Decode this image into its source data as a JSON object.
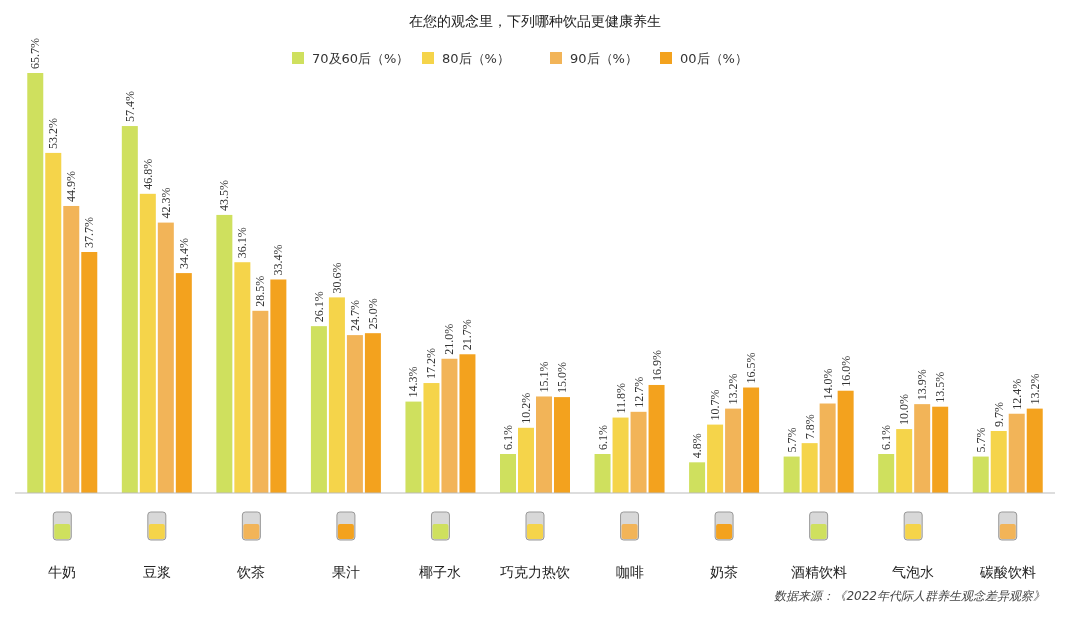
{
  "chart_data": {
    "type": "bar",
    "title": "在您的观念里，下列哪种饮品更健康养生",
    "categories": [
      "牛奶",
      "豆浆",
      "饮茶",
      "果汁",
      "椰子水",
      "巧克力热饮",
      "咖啡",
      "奶茶",
      "酒精饮料",
      "气泡水",
      "碳酸饮料"
    ],
    "series": [
      {
        "name": "70及60后（%）",
        "color": "#cfe05e",
        "values": [
          65.7,
          57.4,
          43.5,
          26.1,
          14.3,
          6.1,
          6.1,
          4.8,
          5.7,
          6.1,
          5.7
        ],
        "value_labels": [
          "65.7%",
          "57.4%",
          "43.5%",
          "26.1%",
          "14.3%",
          "6.1%",
          "6.1%",
          "4.8%",
          "5.7%",
          "6.1%",
          "5.7%"
        ]
      },
      {
        "name": "80后（%）",
        "color": "#f5d44a",
        "values": [
          53.2,
          46.8,
          36.1,
          30.6,
          17.2,
          10.2,
          11.8,
          10.7,
          7.8,
          10.0,
          9.7
        ],
        "value_labels": [
          "53.2%",
          "46.8%",
          "36.1%",
          "30.6%",
          "17.2%",
          "10.2%",
          "11.8%",
          "10.7%",
          "7.8%",
          "10.0%",
          "9.7%"
        ]
      },
      {
        "name": "90后（%）",
        "color": "#f2b458",
        "values": [
          44.9,
          42.3,
          28.5,
          24.7,
          21.0,
          15.1,
          12.7,
          13.2,
          14.0,
          13.9,
          12.4
        ],
        "value_labels": [
          "44.9%",
          "42.3%",
          "28.5%",
          "24.7%",
          "21.0%",
          "15.1%",
          "12.7%",
          "13.2%",
          "14.0%",
          "13.9%",
          "12.4%"
        ]
      },
      {
        "name": "00后（%）",
        "color": "#f3a21e",
        "values": [
          37.7,
          34.4,
          33.4,
          25.0,
          21.7,
          15.0,
          16.9,
          16.5,
          16.0,
          13.5,
          13.2
        ],
        "value_labels": [
          "37.7%",
          "34.4%",
          "33.4%",
          "25.0%",
          "21.7%",
          "15.0%",
          "16.9%",
          "16.5%",
          "16.0%",
          "13.5%",
          "13.2%"
        ]
      }
    ],
    "legend": "top",
    "annotations": [
      "数据来源：《2022年代际人群养生观念差异观察》"
    ]
  }
}
